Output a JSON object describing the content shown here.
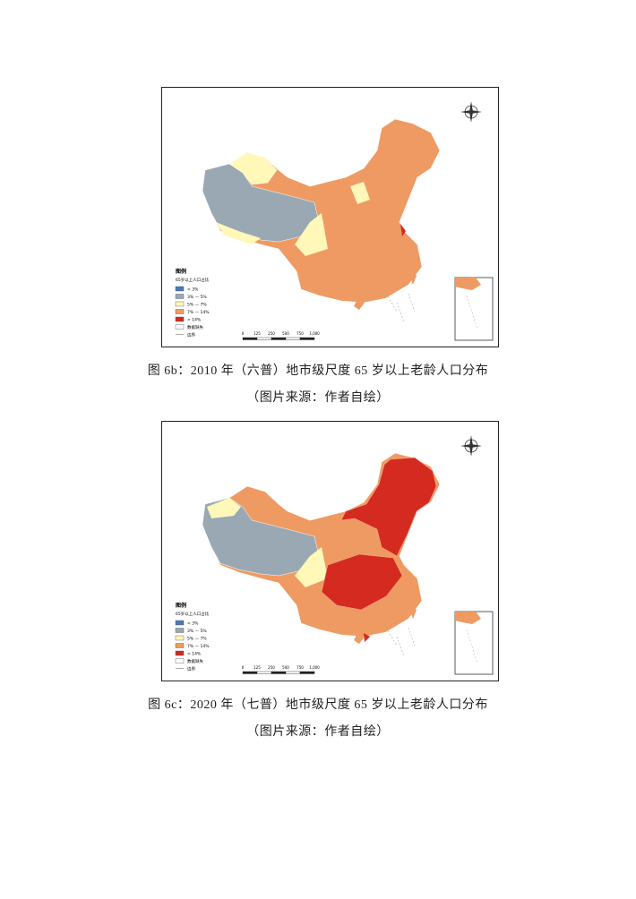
{
  "figures": [
    {
      "legend": {
        "title": "图例",
        "subtitle": "65岁以上人口占比",
        "items": [
          "< 3%",
          "3% — 5%",
          "5% — 7%",
          "7% — 14%",
          "> 14%",
          "数据缺失",
          "边界"
        ]
      },
      "scale_labels": [
        "0",
        "125",
        "250",
        "500",
        "750",
        "1,000"
      ],
      "caption": "图 6b：2010 年（六普）地市级尺度 65 岁以上老龄人口分布",
      "source": "（图片来源：作者自绘）"
    },
    {
      "legend": {
        "title": "图例",
        "subtitle": "65岁以上人口占比",
        "items": [
          "< 3%",
          "3% — 5%",
          "5% — 7%",
          "7% — 14%",
          "> 14%",
          "数据缺失",
          "边界"
        ]
      },
      "scale_labels": [
        "0",
        "125",
        "250",
        "500",
        "750",
        "1,000"
      ],
      "caption": "图 6c：2020 年（七普）地市级尺度 65 岁以上老龄人口分布",
      "source": "（图片来源：作者自绘）"
    }
  ]
}
